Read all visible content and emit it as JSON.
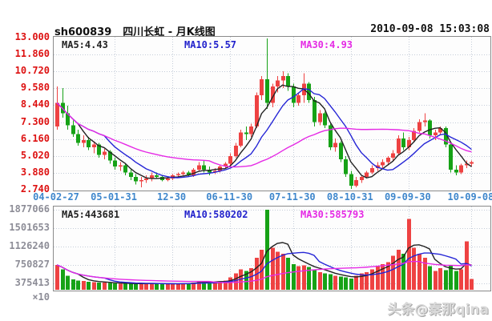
{
  "header": {
    "symbol": "sh600839",
    "title": "四川长虹 - 月K线图",
    "datetime": "2010-09-08 15:03:08"
  },
  "main_pane": {
    "ma5_label": "MA5:4.43",
    "ma10_label": "MA10:5.57",
    "ma30_label": "MA30:4.93"
  },
  "volume_pane": {
    "ma5_label": "MA5:443681",
    "ma10_label": "MA10:580202",
    "ma30_label": "MA30:585793",
    "multiplier": "×10"
  },
  "watermark": "头条@秦那qina",
  "colors": {
    "up_candle": "#ee4242",
    "down_candle": "#16a216",
    "ma5_line": "#222222",
    "ma10_line": "#2626d6",
    "ma30_line": "#e52ae5",
    "price_axis_text": "#dd1111",
    "date_axis_text": "#3f87cc",
    "volume_axis_text": "#8d8d97",
    "grid": "#c4ccd8"
  },
  "chart_data": {
    "type": "candlestick+volume",
    "title": "sh600839 四川长虹 月K线图",
    "legend_position": "top-left-inside",
    "grid": true,
    "price_axis": {
      "min": 2.74,
      "max": 13.0,
      "tick_labels": [
        "13.000",
        "11.860",
        "10.720",
        "9.580",
        "8.440",
        "7.300",
        "6.160",
        "5.020",
        "3.880",
        "2.740"
      ],
      "tick_values": [
        13.0,
        11.86,
        10.72,
        9.58,
        8.44,
        7.3,
        6.16,
        5.02,
        3.88,
        2.74
      ]
    },
    "volume_axis": {
      "max": 1877066,
      "tick_labels": [
        "1877066",
        "1501653",
        "1126240",
        "750827",
        "375413"
      ],
      "tick_values": [
        1877066,
        1501653,
        1126240,
        750827,
        375413
      ],
      "multiplier": "×10"
    },
    "x_ticks": [
      "04-02-27",
      "05-01-31",
      "12-30",
      "06-11-30",
      "07-11-30",
      "08-10-31",
      "09-09-30",
      "10-09-08"
    ],
    "x_tick_indices": [
      0,
      11,
      22,
      33,
      45,
      56,
      67,
      79
    ],
    "moving_averages": {
      "price": {
        "MA5": 4.43,
        "MA10": 5.57,
        "MA30": 4.93
      },
      "volume": {
        "MA5": 443681,
        "MA10": 580202,
        "MA30": 585793
      }
    },
    "candles": [
      [
        "2004-02",
        7.0,
        9.7,
        6.8,
        8.6,
        530000
      ],
      [
        "2004-03",
        8.6,
        9.6,
        7.6,
        7.9,
        420000
      ],
      [
        "2004-04",
        7.9,
        8.4,
        6.8,
        7.1,
        260000
      ],
      [
        "2004-05",
        7.1,
        7.4,
        6.3,
        6.5,
        180000
      ],
      [
        "2004-06",
        6.5,
        6.8,
        5.7,
        5.9,
        150000
      ],
      [
        "2004-07",
        5.9,
        6.4,
        5.6,
        6.1,
        140000
      ],
      [
        "2004-08",
        6.1,
        6.3,
        5.4,
        5.6,
        120000
      ],
      [
        "2004-09",
        5.6,
        6.0,
        5.2,
        5.8,
        110000
      ],
      [
        "2004-10",
        5.8,
        5.9,
        4.9,
        5.1,
        100000
      ],
      [
        "2004-11",
        5.1,
        5.5,
        4.8,
        5.3,
        95000
      ],
      [
        "2004-12",
        5.3,
        5.4,
        4.5,
        4.7,
        90000
      ],
      [
        "2005-01",
        4.7,
        4.9,
        4.1,
        4.3,
        80000
      ],
      [
        "2005-02",
        4.3,
        4.6,
        4.0,
        4.4,
        70000
      ],
      [
        "2005-03",
        4.4,
        4.5,
        3.7,
        3.9,
        80000
      ],
      [
        "2005-04",
        3.9,
        4.1,
        3.4,
        3.6,
        70000
      ],
      [
        "2005-05",
        3.6,
        3.8,
        3.1,
        3.3,
        60000
      ],
      [
        "2005-06",
        3.3,
        3.6,
        2.9,
        3.4,
        80000
      ],
      [
        "2005-07",
        3.4,
        3.7,
        3.2,
        3.5,
        70000
      ],
      [
        "2005-08",
        3.5,
        3.9,
        3.3,
        3.7,
        90000
      ],
      [
        "2005-09",
        3.7,
        3.9,
        3.5,
        3.6,
        70000
      ],
      [
        "2005-10",
        3.6,
        3.7,
        3.3,
        3.4,
        60000
      ],
      [
        "2005-11",
        3.4,
        3.6,
        3.3,
        3.5,
        60000
      ],
      [
        "2005-12",
        3.5,
        3.8,
        3.4,
        3.7,
        70000
      ],
      [
        "2006-01",
        3.7,
        3.9,
        3.6,
        3.8,
        75000
      ],
      [
        "2006-02",
        3.8,
        4.0,
        3.7,
        3.9,
        80000
      ],
      [
        "2006-03",
        3.9,
        4.0,
        3.6,
        3.7,
        70000
      ],
      [
        "2006-04",
        3.7,
        4.2,
        3.6,
        4.1,
        100000
      ],
      [
        "2006-05",
        4.1,
        4.6,
        4.0,
        4.4,
        140000
      ],
      [
        "2006-06",
        4.4,
        4.7,
        3.9,
        4.1,
        120000
      ],
      [
        "2006-07",
        4.1,
        4.3,
        3.7,
        3.9,
        100000
      ],
      [
        "2006-08",
        3.9,
        4.2,
        3.8,
        4.0,
        110000
      ],
      [
        "2006-09",
        4.0,
        4.4,
        3.9,
        4.3,
        130000
      ],
      [
        "2006-10",
        4.3,
        4.6,
        4.2,
        4.5,
        150000
      ],
      [
        "2006-11",
        4.5,
        5.2,
        4.4,
        5.0,
        220000
      ],
      [
        "2006-12",
        5.0,
        5.9,
        4.9,
        5.7,
        320000
      ],
      [
        "2007-01",
        5.7,
        6.8,
        5.6,
        6.6,
        420000
      ],
      [
        "2007-02",
        6.6,
        7.0,
        6.1,
        6.5,
        380000
      ],
      [
        "2007-03",
        6.5,
        7.2,
        6.3,
        7.0,
        450000
      ],
      [
        "2007-04",
        7.0,
        9.3,
        6.9,
        9.1,
        700000
      ],
      [
        "2007-05",
        9.1,
        10.4,
        8.8,
        10.2,
        900000
      ],
      [
        "2007-06",
        10.2,
        12.95,
        8.2,
        8.6,
        1877066
      ],
      [
        "2007-07",
        8.6,
        9.9,
        8.3,
        9.7,
        950000
      ],
      [
        "2007-08",
        9.7,
        10.4,
        9.3,
        10.1,
        850000
      ],
      [
        "2007-09",
        10.1,
        10.72,
        9.6,
        10.4,
        800000
      ],
      [
        "2007-10",
        10.4,
        10.6,
        9.4,
        9.7,
        700000
      ],
      [
        "2007-11",
        9.7,
        9.9,
        8.3,
        8.6,
        550000
      ],
      [
        "2007-12",
        8.6,
        9.3,
        8.4,
        9.1,
        500000
      ],
      [
        "2008-01",
        9.1,
        10.6,
        8.6,
        9.9,
        520000
      ],
      [
        "2008-02",
        9.9,
        10.0,
        8.6,
        8.8,
        480000
      ],
      [
        "2008-03",
        8.8,
        9.0,
        7.0,
        7.3,
        400000
      ],
      [
        "2008-04",
        7.3,
        8.1,
        7.1,
        7.9,
        350000
      ],
      [
        "2008-05",
        7.9,
        8.0,
        6.9,
        7.1,
        320000
      ],
      [
        "2008-06",
        7.1,
        7.2,
        5.4,
        5.6,
        300000
      ],
      [
        "2008-07",
        5.6,
        6.2,
        5.3,
        5.9,
        260000
      ],
      [
        "2008-08",
        5.9,
        6.0,
        4.6,
        4.8,
        240000
      ],
      [
        "2008-09",
        4.8,
        5.0,
        3.6,
        3.8,
        220000
      ],
      [
        "2008-10",
        3.8,
        4.0,
        2.8,
        3.0,
        200000
      ],
      [
        "2008-11",
        3.0,
        3.6,
        2.9,
        3.4,
        260000
      ],
      [
        "2008-12",
        3.4,
        3.7,
        3.2,
        3.6,
        320000
      ],
      [
        "2009-01",
        3.6,
        4.0,
        3.5,
        3.9,
        350000
      ],
      [
        "2009-02",
        3.9,
        4.4,
        3.8,
        4.2,
        420000
      ],
      [
        "2009-03",
        4.2,
        4.6,
        4.0,
        4.4,
        500000
      ],
      [
        "2009-04",
        4.4,
        4.8,
        4.2,
        4.6,
        550000
      ],
      [
        "2009-05",
        4.6,
        5.0,
        4.4,
        4.9,
        600000
      ],
      [
        "2009-06",
        4.9,
        5.4,
        4.7,
        5.2,
        750000
      ],
      [
        "2009-07",
        5.2,
        6.4,
        5.1,
        6.2,
        900000
      ],
      [
        "2009-08",
        6.2,
        6.6,
        5.4,
        5.6,
        800000
      ],
      [
        "2009-09",
        5.6,
        6.3,
        5.4,
        6.1,
        1650000
      ],
      [
        "2009-10",
        6.1,
        6.9,
        6.0,
        6.7,
        950000
      ],
      [
        "2009-11",
        6.7,
        7.5,
        6.6,
        7.3,
        800000
      ],
      [
        "2009-12",
        7.3,
        7.9,
        7.0,
        7.4,
        700000
      ],
      [
        "2010-01",
        7.4,
        7.5,
        6.2,
        6.4,
        500000
      ],
      [
        "2010-02",
        6.4,
        6.8,
        6.1,
        6.6,
        380000
      ],
      [
        "2010-03",
        6.6,
        7.0,
        6.4,
        6.9,
        450000
      ],
      [
        "2010-04",
        6.9,
        7.0,
        5.6,
        5.8,
        400000
      ],
      [
        "2010-05",
        5.8,
        5.9,
        3.9,
        4.1,
        520000
      ],
      [
        "2010-06",
        4.1,
        4.4,
        3.7,
        3.9,
        380000
      ],
      [
        "2010-07",
        3.9,
        4.5,
        3.8,
        4.4,
        420000
      ],
      [
        "2010-08",
        4.4,
        4.7,
        4.2,
        4.5,
        1100000
      ],
      [
        "2010-09",
        4.5,
        4.7,
        4.3,
        4.6,
        190000
      ]
    ]
  }
}
